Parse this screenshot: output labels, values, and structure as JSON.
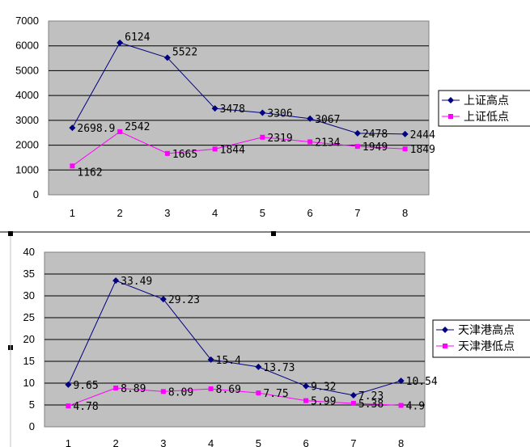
{
  "chart_data": [
    {
      "type": "line",
      "x": [
        1,
        2,
        3,
        4,
        5,
        6,
        7,
        8
      ],
      "ylim": [
        0,
        7000
      ],
      "yticks": [
        0,
        1000,
        2000,
        3000,
        4000,
        5000,
        6000,
        7000
      ],
      "grid": true,
      "legend_position": "right",
      "series": [
        {
          "name": "上证高点",
          "color": "#000080",
          "marker": "diamond",
          "values": [
            2698.9,
            6124,
            5522,
            3478,
            3306,
            3067,
            2478,
            2444
          ],
          "labels": [
            "2698.9",
            "6124",
            "5522",
            "3478",
            "3306",
            "3067",
            "2478",
            "2444"
          ]
        },
        {
          "name": "上证低点",
          "color": "#ff00ff",
          "marker": "square",
          "values": [
            1162,
            2542,
            1665,
            1844,
            2319,
            2134,
            1949,
            1849
          ],
          "labels": [
            "1162",
            "2542",
            "1665",
            "1844",
            "2319",
            "2134",
            "1949",
            "1849"
          ]
        }
      ]
    },
    {
      "type": "line",
      "x": [
        1,
        2,
        3,
        4,
        5,
        6,
        7,
        8
      ],
      "ylim": [
        0,
        40
      ],
      "yticks": [
        0,
        5,
        10,
        15,
        20,
        25,
        30,
        35,
        40
      ],
      "grid": true,
      "legend_position": "right",
      "series": [
        {
          "name": "天津港高点",
          "color": "#000080",
          "marker": "diamond",
          "values": [
            9.65,
            33.49,
            29.23,
            15.4,
            13.73,
            9.32,
            7.23,
            10.54
          ],
          "labels": [
            "9.65",
            "33.49",
            "29.23",
            "15.4",
            "13.73",
            "9.32",
            "7.23",
            "10.54"
          ]
        },
        {
          "name": "天津港低点",
          "color": "#ff00ff",
          "marker": "square",
          "values": [
            4.78,
            8.89,
            8.09,
            8.69,
            7.75,
            5.99,
            5.38,
            4.9
          ],
          "labels": [
            "4.78",
            "8.89",
            "8.09",
            "8.69",
            "7.75",
            "5.99",
            "5.38",
            "4.9"
          ]
        }
      ]
    }
  ]
}
